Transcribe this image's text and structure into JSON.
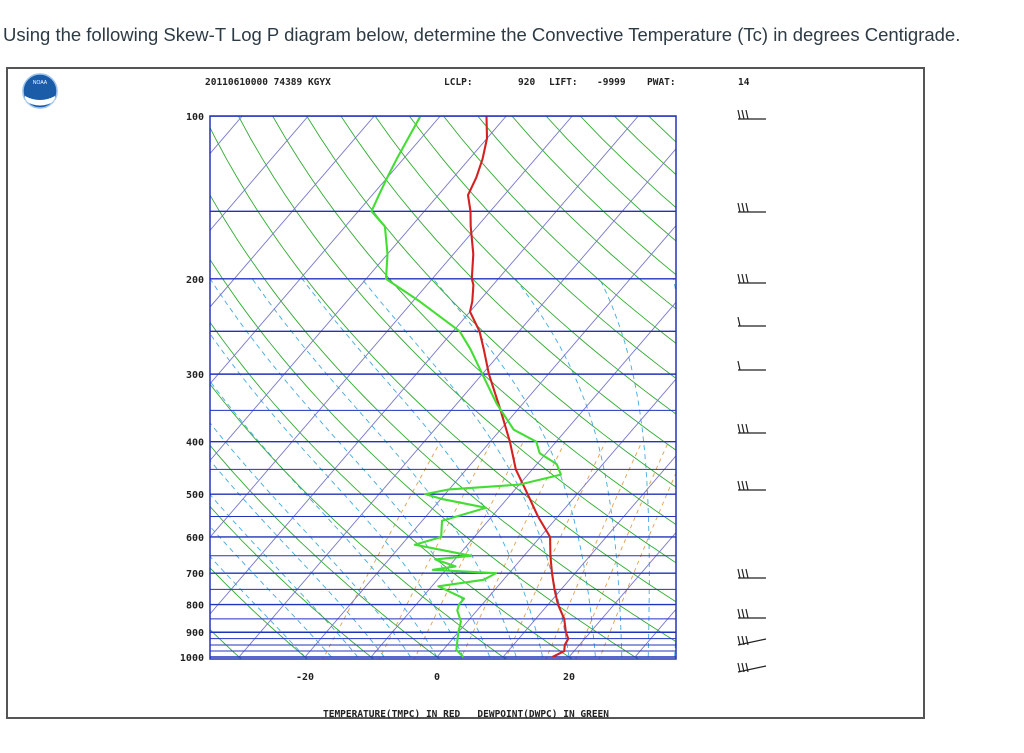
{
  "question": "Using the following Skew-T Log P diagram below, determine the Convective Temperature (Tc) in degrees Centigrade.",
  "header": {
    "date_station": "20110610000 74389 KGYX",
    "lclp_label": "LCLP:",
    "lclp_value": "920",
    "lift_label": "LIFT:",
    "lift_value": "-9999",
    "pwat_label": "PWAT:",
    "pwat_value": "14"
  },
  "logo": {
    "name": "noaa-logo"
  },
  "chart_data": {
    "type": "line",
    "title": "Skew-T Log P",
    "xlabel": "TEMPERATURE(TMPC) IN RED   DEWPOINT(DWPC) IN GREEN",
    "pressure_ticks": [
      100,
      200,
      300,
      400,
      500,
      600,
      700,
      800,
      900,
      1000
    ],
    "temperature_ticks": [
      -20,
      0,
      20
    ],
    "colors": {
      "temperature": "#d42020",
      "dewpoint": "#44dd33",
      "isobar": "#2233bb",
      "isotherm": "#7777cc",
      "dry_adiabat": "#33aa33",
      "moist_adiabat": "#44aadd",
      "mixing_ratio": "#e0a050"
    },
    "series": [
      {
        "name": "Temperature (TMPC)",
        "points": [
          [
            1000,
            17.5
          ],
          [
            975,
            18.5
          ],
          [
            950,
            17.8
          ],
          [
            925,
            17.5
          ],
          [
            900,
            16.3
          ],
          [
            850,
            14.3
          ],
          [
            800,
            11.5
          ],
          [
            750,
            9
          ],
          [
            700,
            6.5
          ],
          [
            650,
            4
          ],
          [
            600,
            1.5
          ],
          [
            550,
            -3
          ],
          [
            500,
            -7.5
          ],
          [
            450,
            -12.5
          ],
          [
            400,
            -17
          ],
          [
            350,
            -22.5
          ],
          [
            300,
            -29
          ],
          [
            270,
            -33
          ],
          [
            250,
            -36
          ],
          [
            230,
            -40
          ],
          [
            220,
            -41
          ],
          [
            205,
            -43
          ],
          [
            200,
            -44
          ],
          [
            180,
            -47
          ],
          [
            160,
            -51
          ],
          [
            150,
            -53
          ],
          [
            140,
            -55.5
          ],
          [
            130,
            -56.5
          ],
          [
            120,
            -58
          ],
          [
            110,
            -60
          ],
          [
            100,
            -63
          ]
        ]
      },
      {
        "name": "Dewpoint (DWPC)",
        "points": [
          [
            1000,
            4
          ],
          [
            970,
            2
          ],
          [
            900,
            0
          ],
          [
            860,
            -1
          ],
          [
            820,
            -3
          ],
          [
            800,
            -3.5
          ],
          [
            780,
            -3.5
          ],
          [
            740,
            -9
          ],
          [
            720,
            -3
          ],
          [
            700,
            -2
          ],
          [
            690,
            -12
          ],
          [
            680,
            -9
          ],
          [
            660,
            -13
          ],
          [
            650,
            -8
          ],
          [
            620,
            -18
          ],
          [
            600,
            -15
          ],
          [
            560,
            -17
          ],
          [
            530,
            -12
          ],
          [
            510,
            -20
          ],
          [
            500,
            -23
          ],
          [
            490,
            -20
          ],
          [
            480,
            -10
          ],
          [
            460,
            -5
          ],
          [
            440,
            -7
          ],
          [
            420,
            -11
          ],
          [
            400,
            -13
          ],
          [
            380,
            -18
          ],
          [
            340,
            -24
          ],
          [
            300,
            -30
          ],
          [
            270,
            -35
          ],
          [
            250,
            -39
          ],
          [
            220,
            -49
          ],
          [
            200,
            -57
          ],
          [
            180,
            -60
          ],
          [
            160,
            -64
          ],
          [
            150,
            -68
          ],
          [
            140,
            -69
          ],
          [
            130,
            -70
          ],
          [
            120,
            -71
          ],
          [
            100,
            -73
          ]
        ]
      }
    ],
    "wind_barbs_levels": [
      "100",
      "150",
      "200",
      "250",
      "300",
      "400",
      "500",
      "700",
      "850",
      "925",
      "1000"
    ]
  }
}
